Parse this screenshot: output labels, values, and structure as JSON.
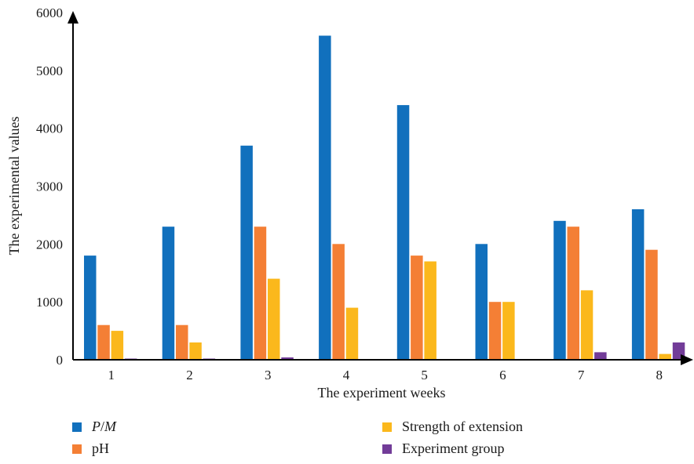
{
  "chart_data": {
    "type": "bar",
    "title": "",
    "xlabel": "The experiment weeks",
    "ylabel": "The experimental values",
    "categories": [
      "1",
      "2",
      "3",
      "4",
      "5",
      "6",
      "7",
      "8"
    ],
    "ylim": [
      0,
      6000
    ],
    "yticks": [
      "0",
      "1000",
      "2000",
      "3000",
      "4000",
      "5000",
      "6000"
    ],
    "grid": false,
    "legend_position": "bottom",
    "series": [
      {
        "name": "P/M",
        "color": "#1170bd",
        "values": [
          1800,
          2300,
          3700,
          5600,
          4400,
          2000,
          2400,
          2600
        ]
      },
      {
        "name": "pH",
        "color": "#f47f35",
        "values": [
          600,
          600,
          2300,
          2000,
          1800,
          1000,
          2300,
          1900
        ]
      },
      {
        "name": "Strength of extension",
        "color": "#fbb81c",
        "values": [
          500,
          300,
          1400,
          900,
          1700,
          1000,
          1200,
          100
        ]
      },
      {
        "name": "Experiment group",
        "color": "#723c98",
        "values": [
          20,
          20,
          40,
          0,
          0,
          0,
          130,
          300
        ]
      }
    ]
  }
}
